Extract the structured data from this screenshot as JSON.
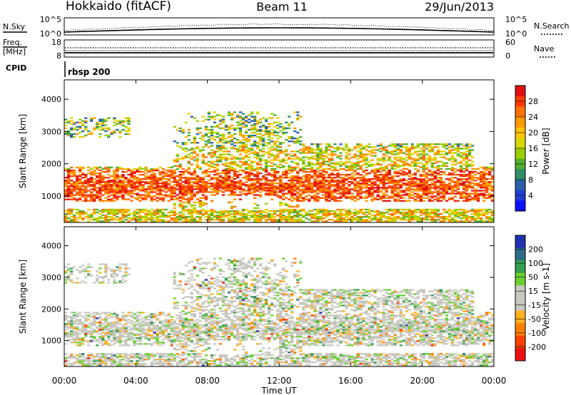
{
  "header": {
    "station": "Hokkaido (fitACF)",
    "beam": "Beam 11",
    "date": "29/Jun/2013"
  },
  "top_panels": {
    "nsky": {
      "left_label": "N.Sky",
      "right_label": "N.Search",
      "left_ticks": [
        "10^5",
        "10^0"
      ],
      "right_ticks": [
        "10^5",
        "10^0"
      ]
    },
    "freq": {
      "left_label_1": "Freq.",
      "left_label_2": "[MHz]",
      "right_label": "Nave",
      "left_ticks": [
        "18",
        "8"
      ],
      "right_ticks": [
        "60",
        "0"
      ]
    },
    "cpid": {
      "label": "CPID",
      "value": "rbsp 200"
    }
  },
  "chart_data": [
    {
      "type": "heatmap",
      "name": "power",
      "ylabel": "Slant Range [km]",
      "yticks": [
        1000,
        2000,
        3000,
        4000
      ],
      "ylim": [
        180,
        4600
      ],
      "colorbar": {
        "label": "Power [dB]",
        "ticks": [
          "28",
          "24",
          "20",
          "16",
          "12",
          "8",
          "4"
        ],
        "colors": [
          "#e01010",
          "#ff3a00",
          "#ff7000",
          "#ff9a00",
          "#ffc400",
          "#d8d800",
          "#9bd000",
          "#52b030",
          "#2f8f6a",
          "#2c5fa8",
          "#1f3fd0",
          "#0a10ff"
        ]
      }
    },
    {
      "type": "heatmap",
      "name": "velocity",
      "ylabel": "Slant Range [km]",
      "xlabel": "Time UT",
      "yticks": [
        1000,
        2000,
        3000,
        4000
      ],
      "ylim": [
        180,
        4600
      ],
      "xticks": [
        "00:00",
        "04:00",
        "08:00",
        "12:00",
        "16:00",
        "20:00",
        "00:00"
      ],
      "colorbar": {
        "label": "Velocity [m s-1]",
        "ticks": [
          "200",
          "100",
          "50",
          "15",
          "-15",
          "-50",
          "-100",
          "-200"
        ],
        "colors": [
          "#2030b0",
          "#2e6c8c",
          "#34a050",
          "#6ad030",
          "#c8c8c0",
          "#c8c8c0",
          "#ffb020",
          "#ff8000",
          "#ff4000",
          "#ee1010"
        ]
      }
    }
  ]
}
